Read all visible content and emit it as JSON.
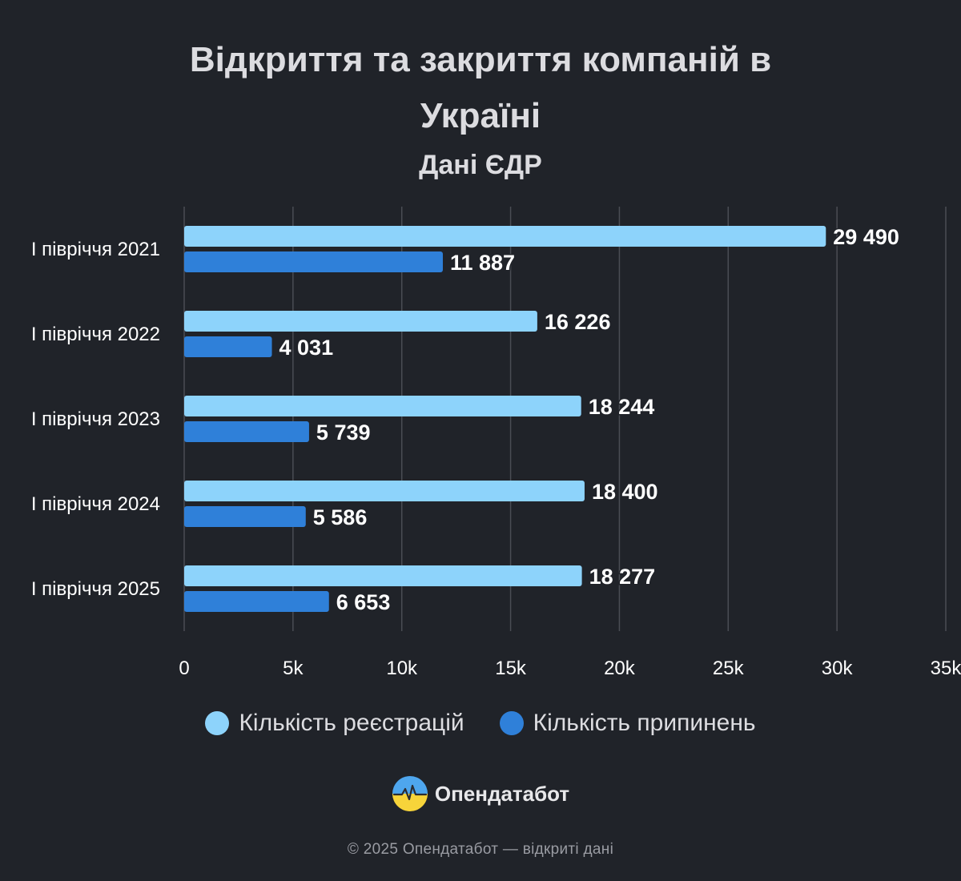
{
  "title_lines": [
    "Відкриття та закриття компаній в",
    "Україні"
  ],
  "subtitle": "Дані ЄДР",
  "legend": {
    "registrations": "Кількість реєстрацій",
    "terminations": "Кількість припинень"
  },
  "brand": {
    "name": "Опендатабот"
  },
  "footer": "© 2025 Опендатабот — відкриті дані",
  "colors": {
    "background": "#202329",
    "registrations": "#8dd3fb",
    "terminations": "#2f80d9",
    "grid": "#4a4d54"
  },
  "chart_data": {
    "type": "bar",
    "orientation": "horizontal",
    "title": "Відкриття та закриття компаній в Україні",
    "subtitle": "Дані ЄДР",
    "categories": [
      "I півріччя 2021",
      "I півріччя 2022",
      "I півріччя 2023",
      "I півріччя 2024",
      "I півріччя 2025"
    ],
    "series": [
      {
        "name": "Кількість реєстрацій",
        "values": [
          29490,
          16226,
          18244,
          18400,
          18277
        ],
        "labels": [
          "29 490",
          "16 226",
          "18 244",
          "18 400",
          "18 277"
        ]
      },
      {
        "name": "Кількість припинень",
        "values": [
          11887,
          4031,
          5739,
          5586,
          6653
        ],
        "labels": [
          "11 887",
          "4 031",
          "5 739",
          "5 586",
          "6 653"
        ]
      }
    ],
    "xlim": [
      0,
      35000
    ],
    "xticks": [
      0,
      5000,
      10000,
      15000,
      20000,
      25000,
      30000,
      35000
    ],
    "xtick_labels": [
      "0",
      "5k",
      "10k",
      "15k",
      "20k",
      "25k",
      "30k",
      "35k"
    ],
    "grid": true,
    "legend_position": "bottom-center"
  }
}
